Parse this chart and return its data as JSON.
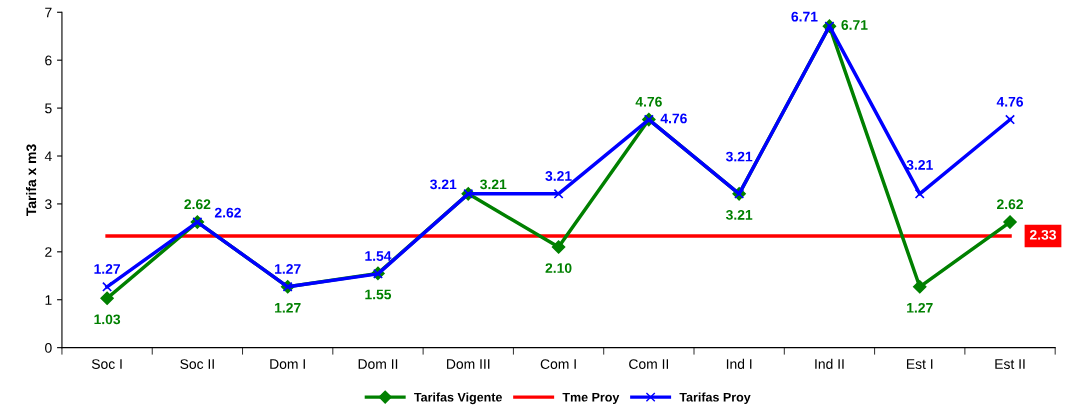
{
  "chart_data": {
    "type": "line",
    "ylabel": "Tarifa x m3",
    "categories": [
      "Soc I",
      "Soc II",
      "Dom I",
      "Dom II",
      "Dom III",
      "Com I",
      "Com II",
      "Ind I",
      "Ind II",
      "Est I",
      "Est II"
    ],
    "series": [
      {
        "name": "Tarifas Vigente",
        "color": "#008000",
        "marker": "diamond",
        "values": [
          1.03,
          2.62,
          1.27,
          1.55,
          3.21,
          2.1,
          4.76,
          3.21,
          6.71,
          1.27,
          2.62
        ],
        "value_labels": [
          "1.03",
          "2.62",
          "1.27",
          "1.55",
          "3.21",
          "2.10",
          "4.76",
          "3.21",
          "6.71",
          "1.27",
          "2.62"
        ]
      },
      {
        "name": "Tme Proy",
        "color": "#ff0000",
        "marker": "none",
        "values": [
          2.33,
          2.33,
          2.33,
          2.33,
          2.33,
          2.33,
          2.33,
          2.33,
          2.33,
          2.33,
          2.33
        ],
        "value_labels": [
          null,
          null,
          null,
          null,
          null,
          null,
          null,
          null,
          null,
          null,
          "2.33"
        ]
      },
      {
        "name": "Tarifas Proy",
        "color": "#0000ff",
        "marker": "cross",
        "values": [
          1.27,
          2.62,
          1.27,
          1.54,
          3.21,
          3.21,
          4.76,
          3.21,
          6.71,
          3.21,
          4.76
        ],
        "value_labels": [
          "1.27",
          "2.62",
          "1.27",
          "1.54",
          "3.21",
          "3.21",
          "4.76",
          "3.21",
          "6.71",
          "3.21",
          "4.76"
        ]
      }
    ],
    "ylim": [
      0,
      7
    ],
    "yticks": [
      0,
      1,
      2,
      3,
      4,
      5,
      6,
      7
    ],
    "grid": false,
    "legend": "bottom",
    "line_style": "solid"
  }
}
